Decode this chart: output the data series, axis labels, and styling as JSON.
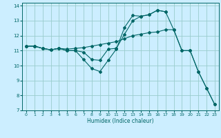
{
  "xlabel": "Humidex (Indice chaleur)",
  "xlim": [
    -0.5,
    23.5
  ],
  "ylim": [
    7,
    14.2
  ],
  "yticks": [
    7,
    8,
    9,
    10,
    11,
    12,
    13,
    14
  ],
  "xticks": [
    0,
    1,
    2,
    3,
    4,
    5,
    6,
    7,
    8,
    9,
    10,
    11,
    12,
    13,
    14,
    15,
    16,
    17,
    18,
    19,
    20,
    21,
    22,
    23
  ],
  "bg_color": "#cceeff",
  "grid_color": "#99cccc",
  "line_color": "#006666",
  "lines": [
    {
      "x": [
        0,
        1,
        2,
        3,
        4,
        5,
        6,
        7,
        8,
        9,
        10,
        11,
        12,
        13,
        14,
        15,
        16,
        17,
        18,
        19,
        20,
        21,
        22,
        23
      ],
      "y": [
        11.3,
        11.3,
        11.15,
        11.05,
        11.15,
        11.0,
        11.0,
        10.4,
        9.8,
        9.6,
        10.35,
        11.1,
        12.55,
        13.35,
        13.3,
        13.4,
        13.7,
        13.6,
        12.4,
        11.0,
        11.0,
        9.6,
        8.5,
        7.4
      ]
    },
    {
      "x": [
        0,
        1,
        2,
        3,
        4,
        5,
        6,
        7,
        8,
        9,
        10,
        11,
        12,
        13,
        14,
        15,
        16,
        17,
        18,
        19,
        20,
        21,
        22,
        23
      ],
      "y": [
        11.3,
        11.3,
        11.15,
        11.05,
        11.15,
        11.1,
        11.15,
        11.2,
        11.3,
        11.4,
        11.5,
        11.6,
        11.8,
        12.0,
        12.1,
        12.2,
        12.25,
        12.4,
        12.4,
        11.0,
        11.0,
        9.6,
        8.5,
        7.4
      ]
    },
    {
      "x": [
        0,
        1,
        2,
        3,
        4,
        5,
        6,
        7,
        8,
        9,
        10,
        11,
        12,
        13,
        14,
        15,
        16,
        17
      ],
      "y": [
        11.3,
        11.3,
        11.15,
        11.05,
        11.15,
        11.0,
        11.0,
        10.9,
        10.4,
        10.35,
        11.1,
        11.15,
        12.1,
        13.0,
        13.3,
        13.4,
        13.7,
        13.6
      ]
    }
  ]
}
